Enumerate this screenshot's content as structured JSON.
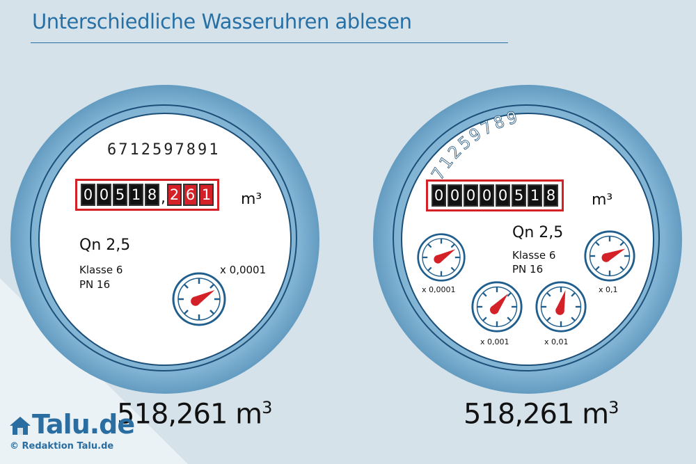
{
  "title": "Unterschiedliche Wasseruhren ablesen",
  "left_meter": {
    "serial": "6712597891",
    "digits_black": [
      "0",
      "0",
      "5",
      "1",
      "8"
    ],
    "comma": ",",
    "digits_red": [
      "2",
      "6",
      "1"
    ],
    "unit": "m³",
    "qn": "Qn 2,5",
    "klasse": "Klasse 6",
    "pn": "PN 16",
    "dial_multiplier": "x 0,0001",
    "reading": "518,261 m",
    "reading_sup": "3"
  },
  "right_meter": {
    "serial": "671259789",
    "digits_black": [
      "0",
      "0",
      "0",
      "0",
      "0",
      "5",
      "1",
      "8"
    ],
    "unit": "m³",
    "qn": "Qn 2,5",
    "klasse": "Klasse 6",
    "pn": "PN 16",
    "dial_labels": [
      "x 0,0001",
      "x 0,001",
      "x 0,01",
      "x 0,1"
    ],
    "reading": "518,261 m",
    "reading_sup": "3"
  },
  "logo": "Talu.de",
  "copyright": "© Redaktion Talu.de",
  "colors": {
    "accent": "#2670a6",
    "red": "#d42127",
    "ring": "#2e6f9c",
    "background": "#d5e2ea"
  },
  "icons": [
    "house-icon",
    "dial-icon"
  ]
}
